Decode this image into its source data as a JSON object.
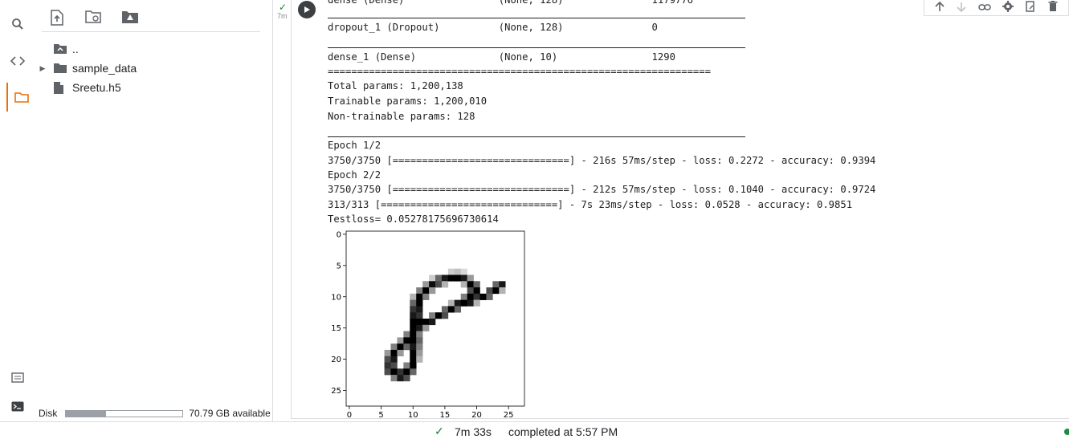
{
  "sidebar": {
    "icons": [
      "search-icon",
      "code-icon",
      "folder-icon"
    ],
    "bottom_icons": [
      "command-palette-icon",
      "terminal-icon"
    ]
  },
  "files": {
    "toolbar": [
      "upload-icon",
      "refresh-icon",
      "mount-drive-icon"
    ],
    "items": [
      {
        "label": "..",
        "type": "parent"
      },
      {
        "label": "sample_data",
        "type": "folder"
      },
      {
        "label": "Sreetu.h5",
        "type": "file"
      }
    ],
    "disk": {
      "label": "Disk",
      "available": "70.79 GB available",
      "used_fraction": 0.34
    }
  },
  "cell": {
    "status_icon": "check-icon",
    "time": "7m",
    "output": {
      "clipped_row": "dense (Dense)                (None, 128)               1179776",
      "rows": [
        "dropout_1 (Dropout)          (None, 128)               0",
        "dense_1 (Dense)              (None, 10)                1290"
      ],
      "double_rule": "=================================================================",
      "params": [
        "Total params: 1,200,138",
        "Trainable params: 1,200,010",
        "Non-trainable params: 128"
      ],
      "training": [
        "Epoch 1/2",
        "3750/3750 [==============================] - 216s 57ms/step - loss: 0.2272 - accuracy: 0.9394",
        "Epoch 2/2",
        "3750/3750 [==============================] - 212s 57ms/step - loss: 0.1040 - accuracy: 0.9724",
        "313/313 [==============================] - 7s 23ms/step - loss: 0.0528 - accuracy: 0.9851",
        "Testloss= 0.05278175696730614"
      ]
    },
    "toolbar_icons": [
      "move-up-icon",
      "move-down-icon",
      "link-icon",
      "settings-icon",
      "mirror-cell-icon",
      "delete-icon"
    ]
  },
  "chart_data": {
    "type": "heatmap",
    "colormap": "gray_r",
    "x_ticks": [
      0,
      5,
      10,
      15,
      20,
      25
    ],
    "y_ticks": [
      0,
      5,
      10,
      15,
      20,
      25
    ],
    "xlim": [
      -0.5,
      27.5
    ],
    "ylim": [
      27.5,
      -0.5
    ],
    "size": [
      28,
      28
    ],
    "pixels": [
      {
        "x": 16,
        "y": 6,
        "v": 0.2
      },
      {
        "x": 17,
        "y": 6,
        "v": 0.25
      },
      {
        "x": 18,
        "y": 6,
        "v": 0.15
      },
      {
        "x": 13,
        "y": 7,
        "v": 0.2
      },
      {
        "x": 14,
        "y": 7,
        "v": 0.6
      },
      {
        "x": 15,
        "y": 7,
        "v": 0.9
      },
      {
        "x": 16,
        "y": 7,
        "v": 1
      },
      {
        "x": 17,
        "y": 7,
        "v": 1
      },
      {
        "x": 18,
        "y": 7,
        "v": 0.9
      },
      {
        "x": 19,
        "y": 7,
        "v": 0.4
      },
      {
        "x": 12,
        "y": 8,
        "v": 0.4
      },
      {
        "x": 13,
        "y": 8,
        "v": 0.95
      },
      {
        "x": 14,
        "y": 8,
        "v": 0.7
      },
      {
        "x": 15,
        "y": 8,
        "v": 0.3
      },
      {
        "x": 18,
        "y": 8,
        "v": 0.3
      },
      {
        "x": 19,
        "y": 8,
        "v": 1
      },
      {
        "x": 20,
        "y": 8,
        "v": 0.6
      },
      {
        "x": 23,
        "y": 8,
        "v": 0.6
      },
      {
        "x": 24,
        "y": 8,
        "v": 0.9
      },
      {
        "x": 11,
        "y": 9,
        "v": 0.5
      },
      {
        "x": 12,
        "y": 9,
        "v": 1
      },
      {
        "x": 13,
        "y": 9,
        "v": 0.4
      },
      {
        "x": 19,
        "y": 9,
        "v": 0.7
      },
      {
        "x": 20,
        "y": 9,
        "v": 1
      },
      {
        "x": 22,
        "y": 9,
        "v": 0.7
      },
      {
        "x": 23,
        "y": 9,
        "v": 1
      },
      {
        "x": 24,
        "y": 9,
        "v": 0.3
      },
      {
        "x": 10,
        "y": 10,
        "v": 0.3
      },
      {
        "x": 11,
        "y": 10,
        "v": 1
      },
      {
        "x": 12,
        "y": 10,
        "v": 0.5
      },
      {
        "x": 18,
        "y": 10,
        "v": 0.5
      },
      {
        "x": 19,
        "y": 10,
        "v": 1
      },
      {
        "x": 20,
        "y": 10,
        "v": 0.8
      },
      {
        "x": 21,
        "y": 10,
        "v": 1
      },
      {
        "x": 22,
        "y": 10,
        "v": 0.6
      },
      {
        "x": 10,
        "y": 11,
        "v": 0.6
      },
      {
        "x": 11,
        "y": 11,
        "v": 1
      },
      {
        "x": 16,
        "y": 11,
        "v": 0.3
      },
      {
        "x": 17,
        "y": 11,
        "v": 0.9
      },
      {
        "x": 18,
        "y": 11,
        "v": 1
      },
      {
        "x": 19,
        "y": 11,
        "v": 0.9
      },
      {
        "x": 20,
        "y": 11,
        "v": 0.3
      },
      {
        "x": 10,
        "y": 12,
        "v": 0.8
      },
      {
        "x": 11,
        "y": 12,
        "v": 0.9
      },
      {
        "x": 15,
        "y": 12,
        "v": 0.6
      },
      {
        "x": 16,
        "y": 12,
        "v": 1
      },
      {
        "x": 17,
        "y": 12,
        "v": 0.6
      },
      {
        "x": 10,
        "y": 13,
        "v": 0.9
      },
      {
        "x": 11,
        "y": 13,
        "v": 0.8
      },
      {
        "x": 13,
        "y": 13,
        "v": 0.5
      },
      {
        "x": 14,
        "y": 13,
        "v": 1
      },
      {
        "x": 15,
        "y": 13,
        "v": 0.7
      },
      {
        "x": 10,
        "y": 14,
        "v": 1
      },
      {
        "x": 11,
        "y": 14,
        "v": 1
      },
      {
        "x": 12,
        "y": 14,
        "v": 1
      },
      {
        "x": 13,
        "y": 14,
        "v": 0.9
      },
      {
        "x": 10,
        "y": 15,
        "v": 1
      },
      {
        "x": 11,
        "y": 15,
        "v": 0.9
      },
      {
        "x": 12,
        "y": 15,
        "v": 0.4
      },
      {
        "x": 9,
        "y": 16,
        "v": 0.5
      },
      {
        "x": 10,
        "y": 16,
        "v": 1
      },
      {
        "x": 11,
        "y": 16,
        "v": 0.5
      },
      {
        "x": 8,
        "y": 17,
        "v": 0.4
      },
      {
        "x": 9,
        "y": 17,
        "v": 1
      },
      {
        "x": 10,
        "y": 17,
        "v": 1
      },
      {
        "x": 11,
        "y": 17,
        "v": 0.6
      },
      {
        "x": 7,
        "y": 18,
        "v": 0.5
      },
      {
        "x": 8,
        "y": 18,
        "v": 1
      },
      {
        "x": 9,
        "y": 18,
        "v": 0.6
      },
      {
        "x": 10,
        "y": 18,
        "v": 0.9
      },
      {
        "x": 11,
        "y": 18,
        "v": 0.5
      },
      {
        "x": 6,
        "y": 19,
        "v": 0.4
      },
      {
        "x": 7,
        "y": 19,
        "v": 1
      },
      {
        "x": 8,
        "y": 19,
        "v": 0.4
      },
      {
        "x": 10,
        "y": 19,
        "v": 1
      },
      {
        "x": 11,
        "y": 19,
        "v": 0.4
      },
      {
        "x": 6,
        "y": 20,
        "v": 0.7
      },
      {
        "x": 7,
        "y": 20,
        "v": 0.9
      },
      {
        "x": 10,
        "y": 20,
        "v": 1
      },
      {
        "x": 11,
        "y": 20,
        "v": 0.3
      },
      {
        "x": 6,
        "y": 21,
        "v": 0.8
      },
      {
        "x": 7,
        "y": 21,
        "v": 0.7
      },
      {
        "x": 9,
        "y": 21,
        "v": 0.5
      },
      {
        "x": 10,
        "y": 21,
        "v": 1
      },
      {
        "x": 6,
        "y": 22,
        "v": 0.7
      },
      {
        "x": 7,
        "y": 22,
        "v": 1
      },
      {
        "x": 8,
        "y": 22,
        "v": 0.8
      },
      {
        "x": 9,
        "y": 22,
        "v": 1
      },
      {
        "x": 10,
        "y": 22,
        "v": 0.6
      },
      {
        "x": 7,
        "y": 23,
        "v": 0.5
      },
      {
        "x": 8,
        "y": 23,
        "v": 0.9
      },
      {
        "x": 9,
        "y": 23,
        "v": 0.7
      }
    ]
  },
  "status": {
    "check": "✓",
    "elapsed": "7m 33s",
    "message": "completed at 5:57 PM"
  }
}
